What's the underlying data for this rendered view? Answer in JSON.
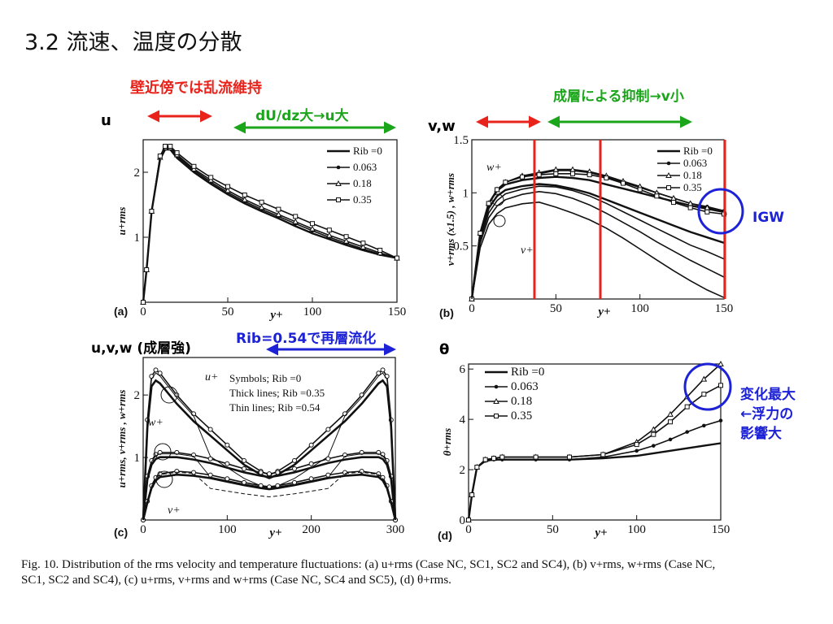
{
  "title": "3.2 流速、温度の分散",
  "annotations": {
    "red_top": "壁近傍では乱流維持",
    "green_a": "dU/dz大→u大",
    "green_b": "成層による抑制→v小",
    "label_u": "u",
    "label_vw": "v,w",
    "label_uvw": "u,v,w (成層強)",
    "label_theta": "θ",
    "blue_c": "Rib=0.54で再層流化",
    "igw": "IGW",
    "change_line1": "変化最大",
    "change_line2": "←浮力の",
    "change_line3": "影響大"
  },
  "caption": {
    "line1": "Fig. 10. Distribution of the rms velocity and temperature fluctuations: (a) u+rms (Case NC, SC1, SC2 and SC4), (b) v+rms, w+rms (Case NC,",
    "line2": "SC1, SC2 and SC4), (c) u+rms, v+rms and w+rms (Case NC, SC4 and SC5), (d) θ+rms."
  },
  "colors": {
    "red": "#e8231b",
    "green": "#1aa51a",
    "blue": "#1d22d6"
  },
  "chart_data": [
    {
      "panel": "(a)",
      "type": "line",
      "xlabel": "y+",
      "ylabel": "u+rms",
      "xlim": [
        0,
        150
      ],
      "ylim": [
        0,
        2.5
      ],
      "xticks": [
        "0",
        "50",
        "100",
        "150"
      ],
      "yticks": [
        "1",
        "2"
      ],
      "legend_title": "Rib =0",
      "series": [
        {
          "name": "Rib =0",
          "x": [
            0,
            2,
            5,
            10,
            13,
            16,
            20,
            30,
            40,
            50,
            60,
            70,
            80,
            90,
            100,
            110,
            120,
            130,
            140,
            150
          ],
          "y": [
            0,
            0.5,
            1.4,
            2.2,
            2.35,
            2.35,
            2.22,
            2.0,
            1.82,
            1.66,
            1.52,
            1.4,
            1.29,
            1.17,
            1.06,
            0.97,
            0.88,
            0.8,
            0.73,
            0.68
          ]
        },
        {
          "name": "0.063",
          "x": [
            0,
            2,
            5,
            10,
            13,
            16,
            20,
            30,
            40,
            50,
            60,
            70,
            80,
            90,
            100,
            110,
            120,
            130,
            140,
            150
          ],
          "y": [
            0,
            0.5,
            1.4,
            2.22,
            2.37,
            2.37,
            2.25,
            2.03,
            1.85,
            1.69,
            1.55,
            1.43,
            1.32,
            1.21,
            1.1,
            1.0,
            0.91,
            0.82,
            0.74,
            0.68
          ]
        },
        {
          "name": "0.18",
          "x": [
            0,
            2,
            5,
            10,
            13,
            16,
            20,
            30,
            40,
            50,
            60,
            70,
            80,
            90,
            100,
            110,
            120,
            130,
            140,
            150
          ],
          "y": [
            0,
            0.5,
            1.4,
            2.23,
            2.38,
            2.38,
            2.27,
            2.05,
            1.88,
            1.72,
            1.58,
            1.46,
            1.35,
            1.24,
            1.13,
            1.03,
            0.94,
            0.85,
            0.76,
            0.68
          ]
        },
        {
          "name": "0.35",
          "x": [
            0,
            2,
            5,
            10,
            13,
            16,
            20,
            30,
            40,
            50,
            60,
            70,
            80,
            90,
            100,
            110,
            120,
            130,
            140,
            150
          ],
          "y": [
            0,
            0.5,
            1.4,
            2.25,
            2.4,
            2.4,
            2.3,
            2.09,
            1.92,
            1.78,
            1.65,
            1.54,
            1.43,
            1.32,
            1.21,
            1.11,
            1.01,
            0.91,
            0.8,
            0.68
          ]
        }
      ]
    },
    {
      "panel": "(b)",
      "type": "line",
      "xlabel": "y+",
      "ylabel": "v+rms (x1.5) , w+rms",
      "xlim": [
        0,
        150
      ],
      "ylim": [
        0,
        1.5
      ],
      "xticks": [
        "0",
        "50",
        "100",
        "150"
      ],
      "yticks": [
        "0.5",
        "1",
        "1.5"
      ],
      "legend_title": "Rib =0",
      "curve_labels": [
        "w+",
        "v+"
      ],
      "series": [
        {
          "name": "Rib =0",
          "x": [
            0,
            5,
            10,
            15,
            20,
            30,
            40,
            50,
            60,
            70,
            80,
            90,
            100,
            110,
            120,
            130,
            140,
            150
          ],
          "y": [
            0,
            0.62,
            0.9,
            1.02,
            1.08,
            1.12,
            1.14,
            1.15,
            1.14,
            1.12,
            1.08,
            1.04,
            1.0,
            0.96,
            0.92,
            0.88,
            0.85,
            0.82
          ]
        },
        {
          "name": "0.063",
          "x": [
            0,
            5,
            10,
            15,
            20,
            30,
            40,
            50,
            60,
            70,
            80,
            90,
            100,
            110,
            120,
            130,
            140,
            150
          ],
          "y": [
            0,
            0.62,
            0.9,
            1.03,
            1.1,
            1.15,
            1.18,
            1.21,
            1.21,
            1.19,
            1.15,
            1.1,
            1.05,
            1.0,
            0.95,
            0.9,
            0.87,
            0.83
          ]
        },
        {
          "name": "0.18",
          "x": [
            0,
            5,
            10,
            15,
            20,
            30,
            40,
            50,
            60,
            70,
            80,
            90,
            100,
            110,
            120,
            130,
            140,
            150
          ],
          "y": [
            0,
            0.62,
            0.9,
            1.03,
            1.1,
            1.16,
            1.19,
            1.22,
            1.22,
            1.2,
            1.16,
            1.11,
            1.06,
            1.0,
            0.95,
            0.9,
            0.86,
            0.82
          ]
        },
        {
          "name": "0.35",
          "x": [
            0,
            5,
            10,
            15,
            20,
            30,
            40,
            50,
            60,
            70,
            80,
            90,
            100,
            110,
            120,
            130,
            140,
            150
          ],
          "y": [
            0,
            0.62,
            0.9,
            1.03,
            1.1,
            1.15,
            1.17,
            1.18,
            1.18,
            1.17,
            1.14,
            1.09,
            1.03,
            0.97,
            0.91,
            0.86,
            0.82,
            0.8
          ]
        }
      ]
    },
    {
      "panel": "(c)",
      "type": "line",
      "xlabel": "y+",
      "ylabel": "u+rms, v+rms , w+rms",
      "xlim": [
        0,
        300
      ],
      "ylim": [
        0,
        2.6
      ],
      "xticks": [
        "0",
        "100",
        "200",
        "300"
      ],
      "yticks": [
        "1",
        "2"
      ],
      "legend_lines": [
        "Symbols; Rib =0",
        "Thick lines; Rib =0.35",
        "Thin lines; Rib =0.54"
      ],
      "curve_labels": [
        "u+",
        "w+",
        "v+"
      ],
      "series": [
        {
          "name": "u+",
          "x": [
            0,
            5,
            10,
            15,
            20,
            40,
            60,
            80,
            100,
            120,
            140,
            150,
            160,
            180,
            200,
            220,
            240,
            260,
            280,
            285,
            290,
            295,
            300
          ],
          "y": [
            0,
            1.6,
            2.3,
            2.4,
            2.35,
            2.0,
            1.7,
            1.45,
            1.2,
            0.95,
            0.78,
            0.72,
            0.78,
            0.95,
            1.2,
            1.45,
            1.7,
            2.0,
            2.35,
            2.4,
            2.3,
            1.6,
            0
          ]
        },
        {
          "name": "w+",
          "x": [
            0,
            5,
            10,
            15,
            20,
            40,
            60,
            80,
            100,
            120,
            140,
            150,
            160,
            180,
            200,
            220,
            240,
            260,
            280,
            285,
            290,
            295,
            300
          ],
          "y": [
            0,
            0.7,
            0.95,
            1.05,
            1.08,
            1.08,
            1.04,
            0.98,
            0.9,
            0.82,
            0.76,
            0.74,
            0.76,
            0.82,
            0.9,
            0.98,
            1.04,
            1.08,
            1.08,
            1.05,
            0.95,
            0.7,
            0
          ]
        },
        {
          "name": "v+",
          "x": [
            0,
            5,
            10,
            15,
            20,
            40,
            60,
            80,
            100,
            120,
            140,
            150,
            160,
            180,
            200,
            220,
            240,
            260,
            280,
            285,
            290,
            295,
            300
          ],
          "y": [
            0,
            0.3,
            0.55,
            0.68,
            0.74,
            0.78,
            0.76,
            0.72,
            0.66,
            0.6,
            0.55,
            0.53,
            0.55,
            0.6,
            0.66,
            0.72,
            0.76,
            0.78,
            0.74,
            0.68,
            0.55,
            0.3,
            0
          ]
        }
      ]
    },
    {
      "panel": "(d)",
      "type": "line",
      "xlabel": "y+",
      "ylabel": "θ+rms",
      "xlim": [
        0,
        150
      ],
      "ylim": [
        0,
        6.2
      ],
      "xticks": [
        "0",
        "50",
        "100",
        "150"
      ],
      "yticks": [
        "0",
        "2",
        "4",
        "6"
      ],
      "legend_title": "Rib =0",
      "series": [
        {
          "name": "Rib =0",
          "x": [
            0,
            2,
            5,
            10,
            15,
            20,
            40,
            60,
            80,
            100,
            110,
            120,
            130,
            140,
            150
          ],
          "y": [
            0,
            1.0,
            2.1,
            2.35,
            2.4,
            2.4,
            2.4,
            2.4,
            2.45,
            2.55,
            2.65,
            2.75,
            2.85,
            2.95,
            3.05
          ]
        },
        {
          "name": "0.063",
          "x": [
            0,
            2,
            5,
            10,
            15,
            20,
            40,
            60,
            80,
            100,
            110,
            120,
            130,
            140,
            150
          ],
          "y": [
            0,
            1.0,
            2.1,
            2.35,
            2.4,
            2.4,
            2.4,
            2.4,
            2.5,
            2.75,
            2.95,
            3.2,
            3.5,
            3.75,
            3.95
          ]
        },
        {
          "name": "0.18",
          "x": [
            0,
            2,
            5,
            10,
            15,
            20,
            40,
            60,
            80,
            100,
            110,
            120,
            130,
            140,
            150
          ],
          "y": [
            0,
            1.0,
            2.1,
            2.4,
            2.45,
            2.5,
            2.5,
            2.5,
            2.6,
            3.1,
            3.6,
            4.2,
            4.9,
            5.6,
            6.2
          ]
        },
        {
          "name": "0.35",
          "x": [
            0,
            2,
            5,
            10,
            15,
            20,
            40,
            60,
            80,
            100,
            110,
            120,
            130,
            140,
            150
          ],
          "y": [
            0,
            1.0,
            2.1,
            2.4,
            2.45,
            2.5,
            2.5,
            2.5,
            2.6,
            3.0,
            3.4,
            3.9,
            4.5,
            5.0,
            5.35
          ]
        }
      ]
    }
  ]
}
